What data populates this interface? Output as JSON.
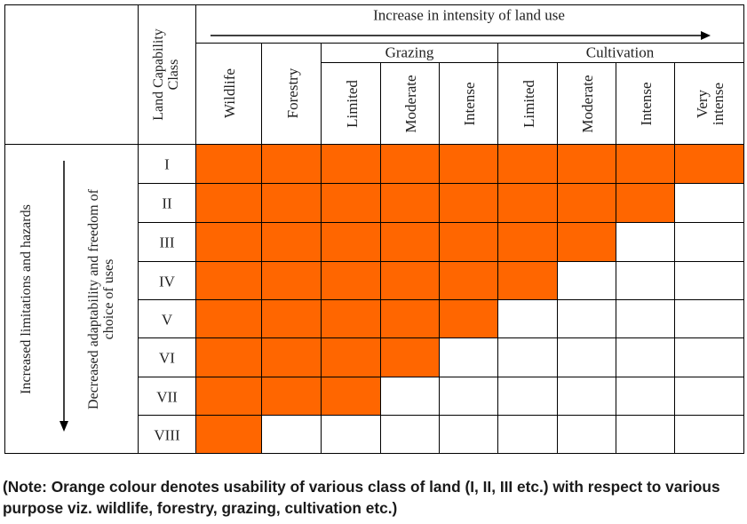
{
  "header": {
    "intensity_label": "Increase in intensity of land use",
    "class_header": "Land Capability Class",
    "group_grazing": "Grazing",
    "group_cultivation": "Cultivation"
  },
  "columns": [
    "Wildlife",
    "Forestry",
    "Limited",
    "Moderate",
    "Intense",
    "Limited",
    "Moderate",
    "Intense",
    "Very intense"
  ],
  "row_side": {
    "label_outer": "Increased limitations and hazards",
    "label_inner": "Decreased adaptability and freedom of choice of uses"
  },
  "rows": [
    {
      "class": "I",
      "usable_count": 9
    },
    {
      "class": "II",
      "usable_count": 8
    },
    {
      "class": "III",
      "usable_count": 7
    },
    {
      "class": "IV",
      "usable_count": 6
    },
    {
      "class": "V",
      "usable_count": 5
    },
    {
      "class": "VI",
      "usable_count": 4
    },
    {
      "class": "VII",
      "usable_count": 3
    },
    {
      "class": "VIII",
      "usable_count": 1
    }
  ],
  "colors": {
    "usable": "#ff6600",
    "grid": "#000000"
  },
  "note": "(Note: Orange colour denotes usability of various class of land (I, II, III etc.) with respect to various purpose viz. wildlife, forestry, grazing, cultivation etc.)"
}
